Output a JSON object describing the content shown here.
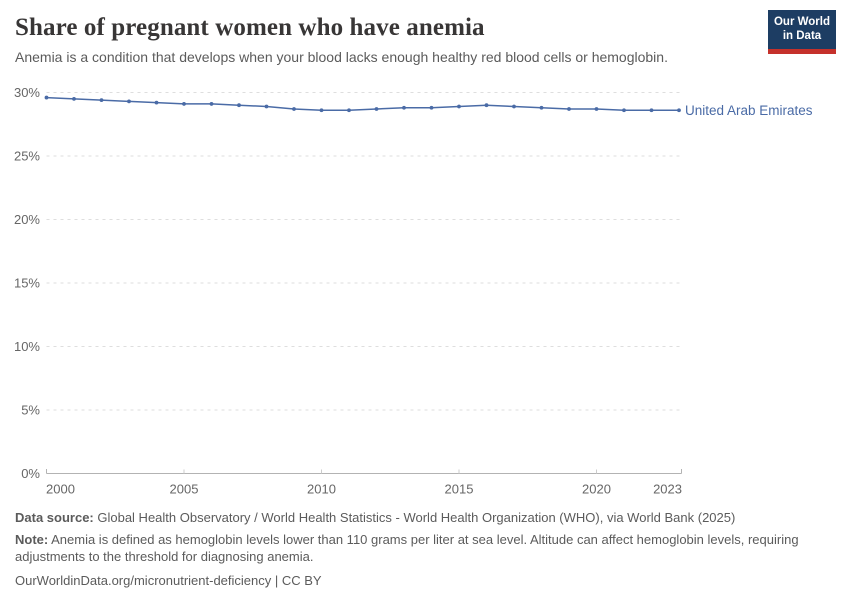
{
  "header": {
    "title": "Share of pregnant women who have anemia",
    "subtitle": "Anemia is a condition that develops when your blood lacks enough healthy red blood cells or hemoglobin.",
    "logo": {
      "line1": "Our World",
      "line2": "in Data",
      "bg_color": "#1d3d63",
      "accent_color": "#c5312b",
      "text_color": "#ffffff"
    }
  },
  "chart_data": {
    "type": "line",
    "title": "Share of pregnant women who have anemia",
    "x": [
      2000,
      2001,
      2002,
      2003,
      2004,
      2005,
      2006,
      2007,
      2008,
      2009,
      2010,
      2011,
      2012,
      2013,
      2014,
      2015,
      2016,
      2017,
      2018,
      2019,
      2020,
      2021,
      2022,
      2023
    ],
    "series": [
      {
        "name": "United Arab Emirates",
        "color": "#4a6ba6",
        "values": [
          29.6,
          29.5,
          29.4,
          29.3,
          29.2,
          29.1,
          29.1,
          29.0,
          28.9,
          28.7,
          28.6,
          28.6,
          28.7,
          28.8,
          28.8,
          28.9,
          29.0,
          28.9,
          28.8,
          28.7,
          28.7,
          28.6,
          28.6,
          28.6
        ]
      }
    ],
    "xlabel": "",
    "ylabel": "",
    "xlim": [
      2000,
      2023
    ],
    "ylim": [
      0,
      30
    ],
    "x_ticks": [
      2000,
      2005,
      2010,
      2015,
      2020,
      2023
    ],
    "y_ticks": [
      0,
      5,
      10,
      15,
      20,
      25,
      30
    ],
    "y_tick_labels": [
      "0%",
      "5%",
      "10%",
      "15%",
      "20%",
      "25%",
      "30%"
    ],
    "grid": "horizontal-dashed",
    "legend_position": "end-of-line"
  },
  "footer": {
    "source_label": "Data source:",
    "source_text": " Global Health Observatory / World Health Statistics - World Health Organization (WHO), via World Bank (2025)",
    "note_label": "Note:",
    "note_text": " Anemia is defined as hemoglobin levels lower than 110 grams per liter at sea level. Altitude can affect hemoglobin levels, requiring adjustments to the threshold for diagnosing anemia.",
    "url_text": "OurWorldinData.org/micronutrient-deficiency | CC BY"
  }
}
